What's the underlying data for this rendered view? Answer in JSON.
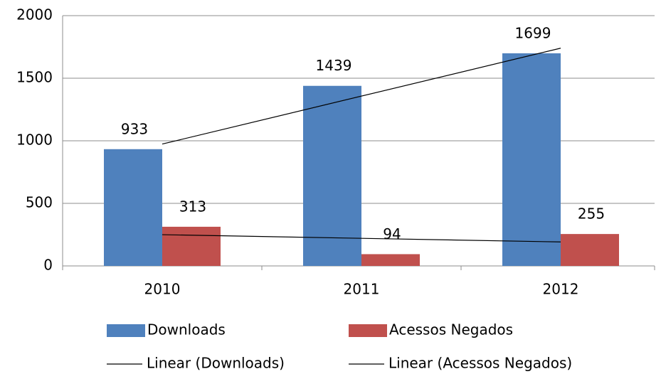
{
  "chart_data": {
    "type": "bar",
    "categories": [
      "2010",
      "2011",
      "2012"
    ],
    "series": [
      {
        "name": "Downloads",
        "color": "#4f81bd",
        "values": [
          933,
          1439,
          1699
        ]
      },
      {
        "name": "Acessos Negados",
        "color": "#c0504d",
        "values": [
          313,
          94,
          255
        ]
      }
    ],
    "trendlines": [
      {
        "name": "Linear (Downloads)",
        "series": 0,
        "color": "#000000"
      },
      {
        "name": "Linear (Acessos Negados)",
        "series": 1,
        "color": "#000000"
      }
    ],
    "ylim": [
      0,
      2000
    ],
    "yticks": [
      0,
      500,
      1000,
      1500,
      2000
    ],
    "grid": true,
    "legend": "bottom"
  }
}
